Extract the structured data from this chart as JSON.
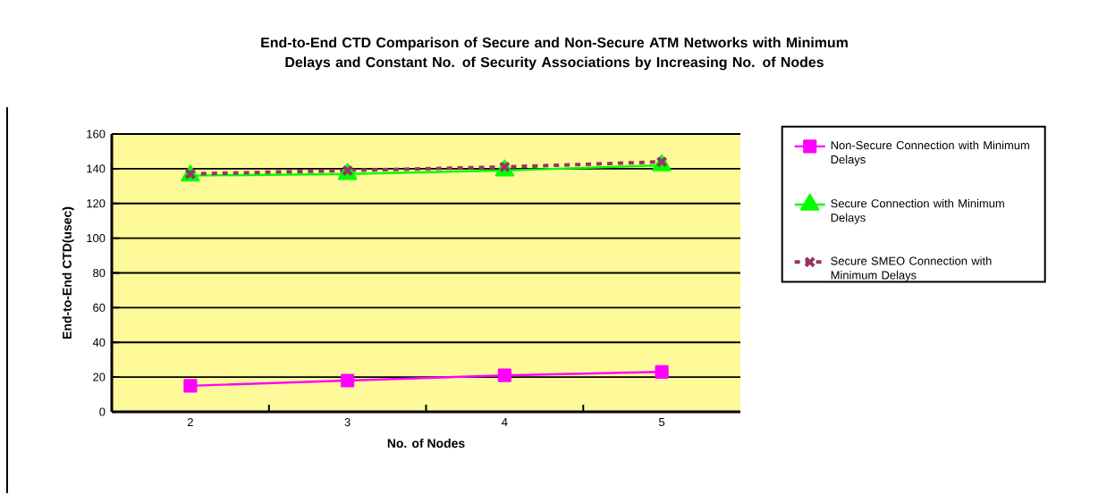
{
  "chart_data": {
    "type": "line",
    "title": "End-to-End CTD Comparison of Secure and Non-Secure ATM Networks with Minimum Delays and Constant No. of Security Associations by Increasing No. of Nodes",
    "xlabel": "No. of Nodes",
    "ylabel": "End-to-End CTD(usec)",
    "categories": [
      "2",
      "3",
      "4",
      "5"
    ],
    "series": [
      {
        "name": "Non-Secure Connection with Minimum Delays",
        "color": "#ff00ff",
        "marker": "square",
        "line_style": "solid",
        "values": [
          15,
          18,
          21,
          23
        ]
      },
      {
        "name": "Secure Connection with Minimum Delays",
        "color": "#00ff00",
        "marker": "triangle",
        "line_style": "solid",
        "values": [
          136,
          137,
          139,
          142
        ]
      },
      {
        "name": "Secure SMEO Connection with Minimum Delays",
        "color": "#993366",
        "marker": "cross",
        "line_style": "dashed",
        "values": [
          137,
          139,
          141,
          144
        ]
      }
    ],
    "ylim": [
      0,
      160
    ],
    "yticks": [
      0,
      20,
      40,
      60,
      80,
      100,
      120,
      140,
      160
    ],
    "grid": "y",
    "legend": "right"
  }
}
